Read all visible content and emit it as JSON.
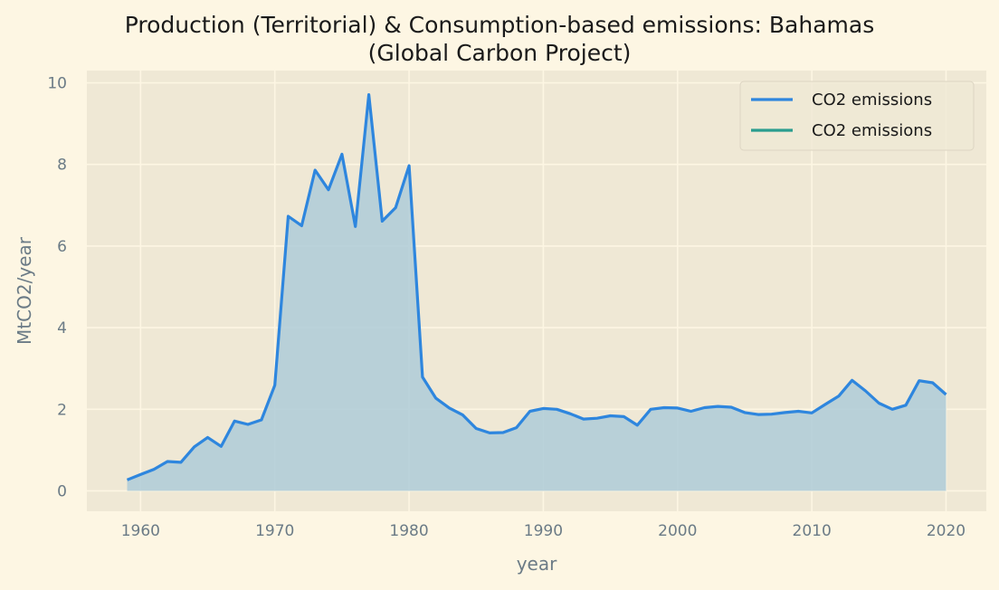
{
  "title_line1": "Production (Territorial) & Consumption-based emissions: Bahamas",
  "title_line2": "(Global Carbon Project)",
  "chart_data": {
    "type": "area",
    "title": "Production (Territorial) & Consumption-based emissions: Bahamas (Global Carbon Project)",
    "xlabel": "year",
    "ylabel": "MtCO2/year",
    "xlim": [
      1956,
      2023
    ],
    "ylim": [
      -0.5,
      10.3
    ],
    "xticks": [
      1960,
      1970,
      1980,
      1990,
      2000,
      2010,
      2020
    ],
    "yticks": [
      0,
      2,
      4,
      6,
      8,
      10
    ],
    "grid": true,
    "legend_position": "top-right",
    "colors": {
      "series1": "#2e86de",
      "series2": "#2a9d8f",
      "fill": "#aecbd8",
      "plot_bg": "#efe8d5",
      "grid": "#fdf6e3"
    },
    "series": [
      {
        "name": "CO2 emissions",
        "x": [
          1959,
          1960,
          1961,
          1962,
          1963,
          1964,
          1965,
          1966,
          1967,
          1968,
          1969,
          1970,
          1971,
          1972,
          1973,
          1974,
          1975,
          1976,
          1977,
          1978,
          1979,
          1980,
          1981,
          1982,
          1983,
          1984,
          1985,
          1986,
          1987,
          1988,
          1989,
          1990,
          1991,
          1992,
          1993,
          1994,
          1995,
          1996,
          1997,
          1998,
          1999,
          2000,
          2001,
          2002,
          2003,
          2004,
          2005,
          2006,
          2007,
          2008,
          2009,
          2010,
          2011,
          2012,
          2013,
          2014,
          2015,
          2016,
          2017,
          2018,
          2019,
          2020
        ],
        "values": [
          0.27,
          0.4,
          0.53,
          0.72,
          0.7,
          1.08,
          1.31,
          1.09,
          1.71,
          1.63,
          1.74,
          2.59,
          6.73,
          6.5,
          7.86,
          7.38,
          8.25,
          6.48,
          9.71,
          6.61,
          6.94,
          7.97,
          2.79,
          2.27,
          2.03,
          1.86,
          1.53,
          1.42,
          1.43,
          1.55,
          1.95,
          2.02,
          2.0,
          1.89,
          1.76,
          1.78,
          1.84,
          1.82,
          1.61,
          2.0,
          2.04,
          2.03,
          1.95,
          2.04,
          2.07,
          2.05,
          1.92,
          1.87,
          1.88,
          1.92,
          1.95,
          1.91,
          2.12,
          2.32,
          2.71,
          2.45,
          2.15,
          2.0,
          2.1,
          2.7,
          2.65,
          2.36
        ]
      },
      {
        "name": "CO2 emissions",
        "x": [],
        "values": []
      }
    ]
  }
}
